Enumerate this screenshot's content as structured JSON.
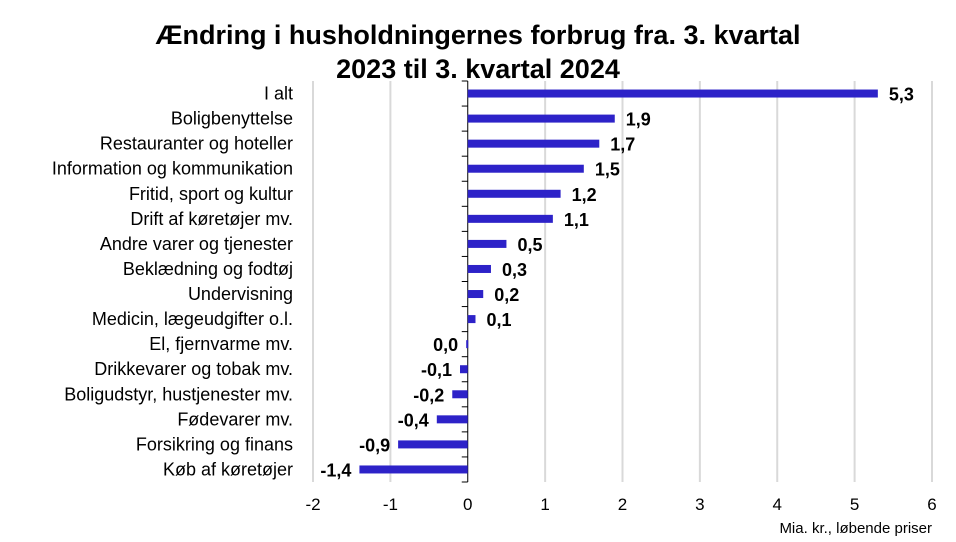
{
  "chart_data": {
    "type": "bar",
    "orientation": "horizontal",
    "title_line1": "Ændring i husholdningernes forbrug fra. 3. kvartal",
    "title_line2": "2023 til 3. kvartal 2024",
    "categories": [
      "I alt",
      "Boligbenyttelse",
      "Restauranter og hoteller",
      "Information og kommunikation",
      "Fritid, sport og kultur",
      "Drift af køretøjer mv.",
      "Andre varer og tjenester",
      "Beklædning og fodtøj",
      "Undervisning",
      "Medicin, lægeudgifter o.l.",
      "El, fjernvarme mv.",
      "Drikkevarer og tobak mv.",
      "Boligudstyr, hustjenester mv.",
      "Fødevarer mv.",
      "Forsikring og finans",
      "Køb af køretøjer"
    ],
    "values": [
      5.3,
      1.9,
      1.7,
      1.5,
      1.2,
      1.1,
      0.5,
      0.3,
      0.2,
      0.1,
      -0.02,
      -0.1,
      -0.2,
      -0.4,
      -0.9,
      -1.4
    ],
    "value_labels": [
      "5,3",
      "1,9",
      "1,7",
      "1,5",
      "1,2",
      "1,1",
      "0,5",
      "0,3",
      "0,2",
      "0,1",
      "0,0",
      "-0,1",
      "-0,2",
      "-0,4",
      "-0,9",
      "-1,4"
    ],
    "xlim": [
      -2,
      6
    ],
    "x_ticks": [
      -2,
      -1,
      0,
      1,
      2,
      3,
      4,
      5,
      6
    ],
    "x_tick_labels": [
      "-2",
      "-1",
      "0",
      "1",
      "2",
      "3",
      "4",
      "5",
      "6"
    ],
    "xlabel": "Mia. kr., løbende priser",
    "grid": "vertical",
    "bar_color": "#2d22c8",
    "grid_color": "#d9d9d9"
  }
}
